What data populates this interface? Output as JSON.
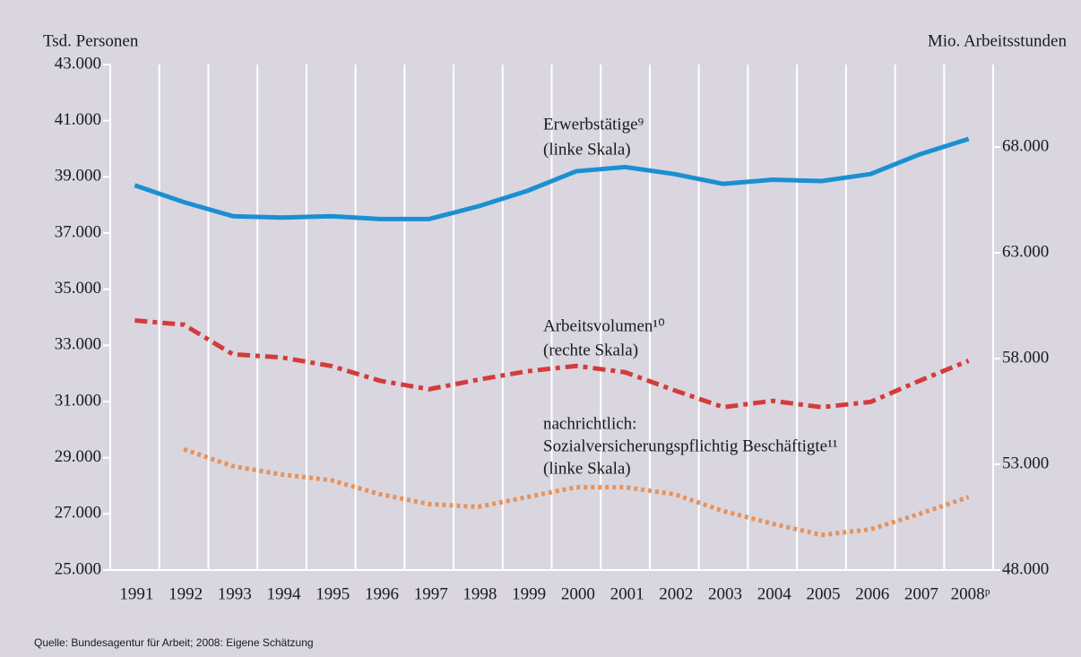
{
  "chart_data": {
    "type": "line",
    "y_label": "Tsd. Personen",
    "y2_label": "Mio. Arbeitsstunden",
    "source": "Quelle: Bundesagentur für Arbeit; 2008: Eigene Schätzung",
    "categories": [
      "1991",
      "1992",
      "1993",
      "1994",
      "1995",
      "1996",
      "1997",
      "1998",
      "1999",
      "2000",
      "2001",
      "2002",
      "2003",
      "2004",
      "2005",
      "2006",
      "2007",
      "2008ᵖ"
    ],
    "series": [
      {
        "name": "Erwerbstätige⁹",
        "note": "(linke Skala)",
        "color": "#1b8fd2",
        "style": "solid",
        "values": [
          38700,
          38100,
          37600,
          37550,
          37600,
          37500,
          37500,
          37950,
          38500,
          39200,
          39350,
          39100,
          38750,
          38900,
          38850,
          39100,
          39800,
          40350
        ]
      },
      {
        "name": "Arbeitsvolumen¹⁰",
        "note": "(rechte Skala)",
        "color": "#d43b3b",
        "style": "dashdot",
        "axis": "y2",
        "values": [
          59800,
          59600,
          58200,
          58050,
          57650,
          56950,
          56550,
          57000,
          57400,
          57650,
          57350,
          56500,
          55700,
          56000,
          55700,
          55950,
          56950,
          57900
        ]
      },
      {
        "name": "Sozialversicherungspflichtig Beschäftigte¹¹",
        "prefix": "nachrichtlich:",
        "note": "(linke Skala)",
        "color": "#e8925a",
        "style": "dotted",
        "values": [
          null,
          29300,
          28700,
          28400,
          28200,
          27700,
          27350,
          27250,
          27600,
          27950,
          27950,
          27700,
          27100,
          26650,
          26250,
          26450,
          27000,
          27600
        ]
      }
    ],
    "ylim": [
      25000,
      43000
    ],
    "yticks": [
      {
        "value": 25000,
        "label": "25.000"
      },
      {
        "value": 27000,
        "label": "27.000"
      },
      {
        "value": 29000,
        "label": "29.000"
      },
      {
        "value": 31000,
        "label": "31.000"
      },
      {
        "value": 33000,
        "label": "33.000"
      },
      {
        "value": 35000,
        "label": "35.000"
      },
      {
        "value": 37000,
        "label": "37.000"
      },
      {
        "value": 39000,
        "label": "39.000"
      },
      {
        "value": 41000,
        "label": "41.000"
      },
      {
        "value": 43000,
        "label": "43.000"
      }
    ],
    "y2lim": [
      48000,
      71900
    ],
    "y2ticks": [
      {
        "value": 48000,
        "label": "48.000"
      },
      {
        "value": 53000,
        "label": "53.000"
      },
      {
        "value": 58000,
        "label": "58.000"
      },
      {
        "value": 63000,
        "label": "63.000"
      },
      {
        "value": 68000,
        "label": "68.000"
      }
    ]
  }
}
